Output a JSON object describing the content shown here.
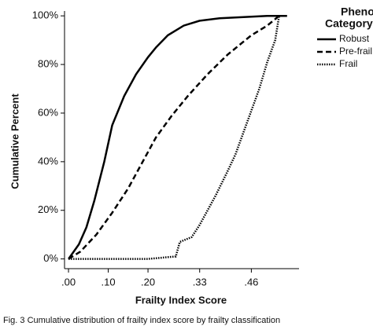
{
  "chart_data": {
    "type": "line",
    "xlabel": "Frailty Index Score",
    "ylabel": "Cumulative Percent",
    "legend_title": "Phenotype Category",
    "legend": "right",
    "caption": "Fig. 3 Cumulative distribution of frailty index score by frailty classification",
    "xlim": [
      -0.01,
      0.58
    ],
    "xticks": [
      {
        "value": 0,
        "label": ".00"
      },
      {
        "value": 0.1,
        "label": ".10"
      },
      {
        "value": 0.2,
        "label": ".20"
      },
      {
        "value": 0.33,
        "label": ".33"
      },
      {
        "value": 0.46,
        "label": ".46"
      }
    ],
    "ylim": [
      -4,
      102
    ],
    "yticks": [
      {
        "value": 0,
        "label": "0%"
      },
      {
        "value": 20,
        "label": "20%"
      },
      {
        "value": 40,
        "label": "40%"
      },
      {
        "value": 60,
        "label": "60%"
      },
      {
        "value": 80,
        "label": "80%"
      },
      {
        "value": 100,
        "label": "100%"
      }
    ],
    "series": [
      {
        "name": "Robust",
        "color": "#000000",
        "dash": "solid",
        "x": [
          0,
          0.026,
          0.045,
          0.065,
          0.09,
          0.11,
          0.14,
          0.17,
          0.2,
          0.22,
          0.25,
          0.29,
          0.33,
          0.38,
          0.44,
          0.5,
          0.55
        ],
        "values": [
          0,
          6,
          13,
          24,
          40,
          55,
          67,
          76,
          83,
          87,
          92,
          96,
          98,
          99,
          99.5,
          100,
          100
        ]
      },
      {
        "name": "Pre-frail",
        "color": "#000000",
        "dash": "dashed",
        "x": [
          0,
          0.03,
          0.07,
          0.11,
          0.15,
          0.19,
          0.22,
          0.26,
          0.3,
          0.35,
          0.4,
          0.46,
          0.5,
          0.53
        ],
        "values": [
          0,
          3,
          10,
          19,
          29,
          41,
          50,
          59,
          67,
          76,
          84,
          92,
          96,
          100
        ]
      },
      {
        "name": "Frail",
        "color": "#000000",
        "dash": "dotted",
        "x": [
          0,
          0.1,
          0.2,
          0.27,
          0.28,
          0.31,
          0.33,
          0.35,
          0.37,
          0.4,
          0.42,
          0.44,
          0.46,
          0.48,
          0.5,
          0.52,
          0.53
        ],
        "values": [
          0,
          0,
          0,
          1,
          7,
          9,
          14,
          20,
          26,
          36,
          43,
          52,
          61,
          70,
          81,
          90,
          100
        ]
      }
    ]
  }
}
